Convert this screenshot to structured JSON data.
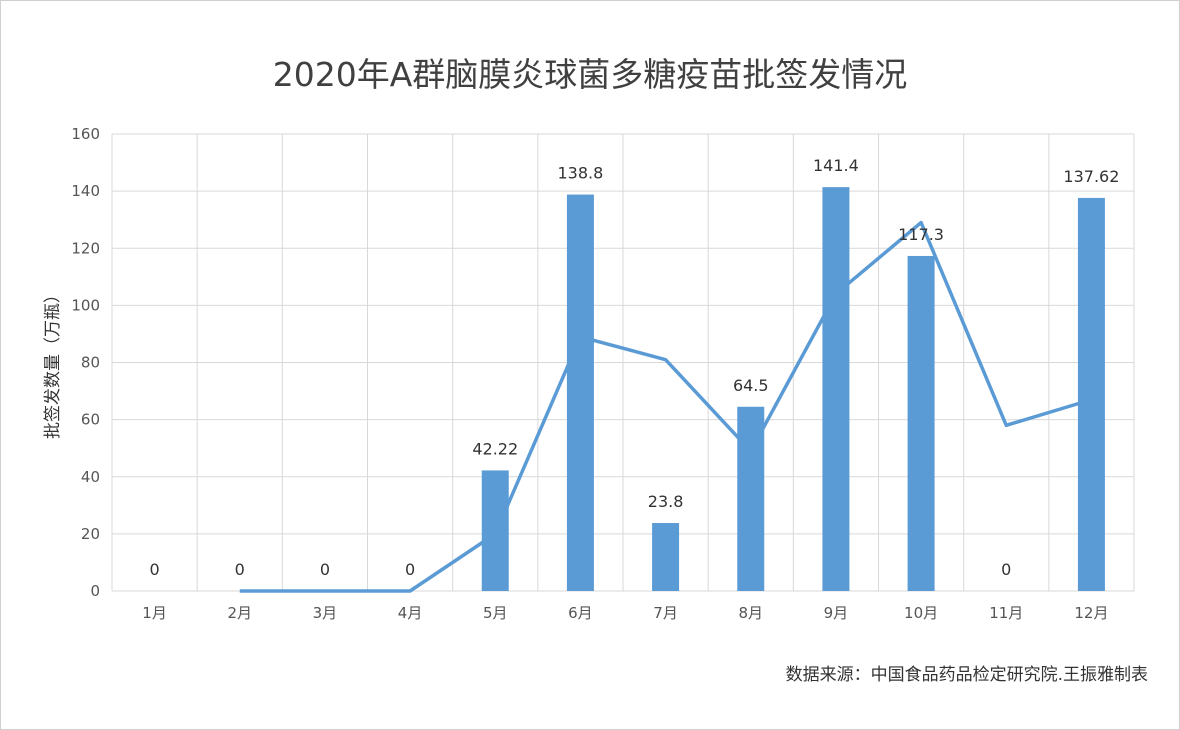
{
  "chart_data": {
    "type": "bar",
    "title": "2020年A群脑膜炎球菌多糖疫苗批签发情况",
    "xlabel": "",
    "ylabel": "批签发数量（万瓶）",
    "ylim": [
      0,
      160
    ],
    "yticks": [
      0,
      20,
      40,
      60,
      80,
      100,
      120,
      140,
      160
    ],
    "grid": true,
    "categories": [
      "1月",
      "2月",
      "3月",
      "4月",
      "5月",
      "6月",
      "7月",
      "8月",
      "9月",
      "10月",
      "11月",
      "12月"
    ],
    "series": [
      {
        "type": "bar",
        "values": [
          0,
          0,
          0,
          0,
          42.22,
          138.8,
          23.8,
          64.5,
          141.4,
          117.3,
          0,
          137.62
        ],
        "data_labels": [
          "0",
          "0",
          "0",
          "0",
          "42.22",
          "138.8",
          "23.8",
          "64.5",
          "141.4",
          "117.3",
          "0",
          "137.62"
        ],
        "color": "#5B9BD5"
      },
      {
        "type": "line",
        "values": [
          null,
          0,
          0,
          0,
          20,
          89,
          81,
          49,
          104,
          129,
          58,
          67
        ],
        "color": "#5B9BD5"
      }
    ]
  },
  "source_note": "数据来源：中国食品药品检定研究院.王振雅制表"
}
